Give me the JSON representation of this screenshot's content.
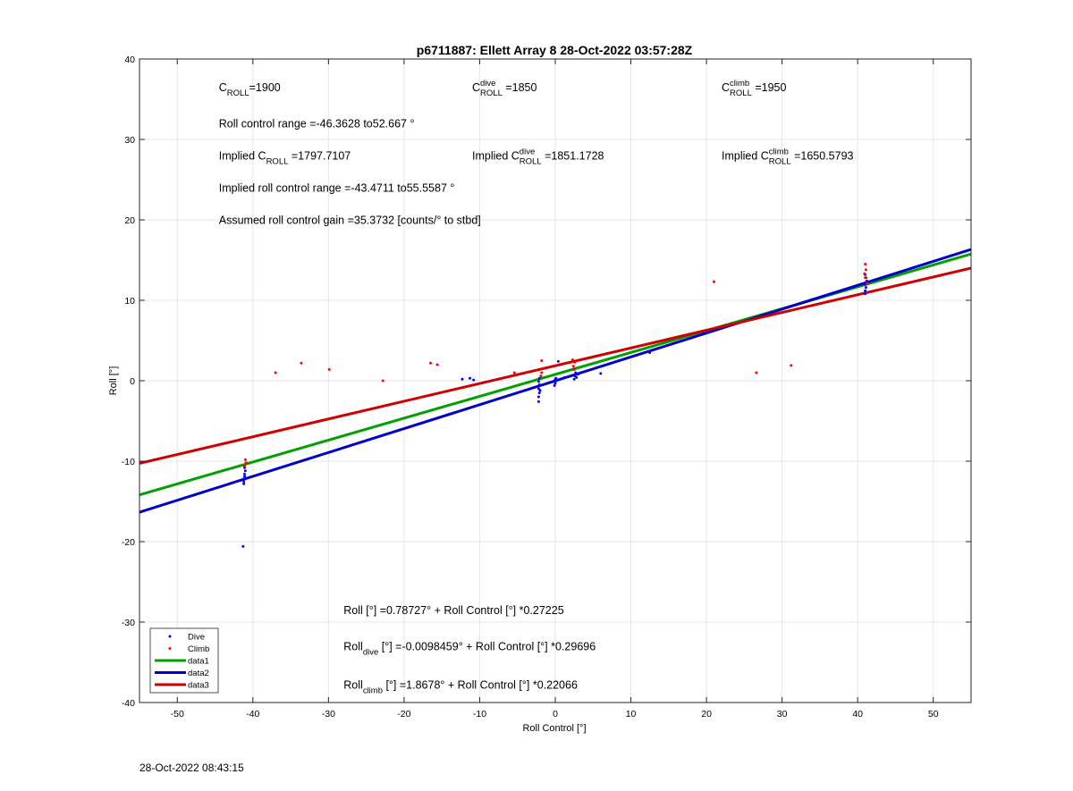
{
  "chart_data": {
    "type": "scatter",
    "title": "p6711887: Ellett Array 8 28-Oct-2022 03:57:28Z",
    "xlabel": "Roll Control [°]",
    "ylabel": "Roll [°]",
    "xlim": [
      -55,
      55
    ],
    "ylim": [
      -40,
      40
    ],
    "xticks": [
      -50,
      -40,
      -30,
      -20,
      -10,
      0,
      10,
      20,
      30,
      40,
      50
    ],
    "yticks": [
      -40,
      -30,
      -20,
      -10,
      0,
      10,
      20,
      30,
      40
    ],
    "grid": true,
    "legend_position": "bottom-left",
    "series": [
      {
        "name": "Dive",
        "kind": "points",
        "color": "#0000ff",
        "points": [
          [
            -41.3,
            -20.6
          ],
          [
            -41.2,
            -12.5
          ],
          [
            -41.2,
            -12.2
          ],
          [
            -41.1,
            -11.9
          ],
          [
            -41.1,
            -11.6
          ],
          [
            -41.0,
            -11.2
          ],
          [
            -41.1,
            -10.8
          ],
          [
            -41.2,
            -12.8
          ],
          [
            -12.3,
            0.2
          ],
          [
            -11.3,
            0.3
          ],
          [
            -10.8,
            0.1
          ],
          [
            -2.2,
            -2.6
          ],
          [
            -2.2,
            -2.0
          ],
          [
            -2.1,
            -1.5
          ],
          [
            -2.2,
            -1.0
          ],
          [
            -2.1,
            -0.5
          ],
          [
            -2.2,
            -0.1
          ],
          [
            -2.1,
            0.3
          ],
          [
            -2.0,
            -1.2
          ],
          [
            -0.1,
            -0.6
          ],
          [
            0.0,
            -0.3
          ],
          [
            -0.1,
            0.0
          ],
          [
            0.1,
            0.3
          ],
          [
            0.0,
            -0.1
          ],
          [
            0.0,
            0.2
          ],
          [
            0.4,
            2.4
          ],
          [
            1.2,
            0.4
          ],
          [
            2.5,
            0.2
          ],
          [
            2.6,
            0.6
          ],
          [
            2.7,
            1.0
          ],
          [
            2.5,
            1.4
          ],
          [
            2.8,
            0.4
          ],
          [
            3.0,
            0.8
          ],
          [
            6.0,
            0.9
          ],
          [
            12.5,
            3.5
          ],
          [
            41.0,
            10.8
          ],
          [
            41.0,
            11.2
          ],
          [
            41.1,
            11.6
          ],
          [
            41.0,
            12.0
          ],
          [
            41.2,
            12.4
          ],
          [
            41.1,
            12.8
          ],
          [
            41.0,
            13.2
          ]
        ]
      },
      {
        "name": "Climb",
        "kind": "points",
        "color": "#ff0000",
        "points": [
          [
            -41.1,
            -10.6
          ],
          [
            -40.9,
            -10.2
          ],
          [
            -41.0,
            -9.8
          ],
          [
            -37.0,
            1.0
          ],
          [
            -33.6,
            2.2
          ],
          [
            -29.9,
            1.4
          ],
          [
            -22.8,
            0.0
          ],
          [
            -16.5,
            2.2
          ],
          [
            -15.6,
            2.0
          ],
          [
            -5.4,
            1.0
          ],
          [
            -1.8,
            2.5
          ],
          [
            -1.8,
            1.0
          ],
          [
            -1.7,
            1.5
          ],
          [
            -1.9,
            0.6
          ],
          [
            2.4,
            1.8
          ],
          [
            2.6,
            2.3
          ],
          [
            2.3,
            2.6
          ],
          [
            2.5,
            1.4
          ],
          [
            21.0,
            12.3
          ],
          [
            26.6,
            1.0
          ],
          [
            31.2,
            1.9
          ],
          [
            41.0,
            14.5
          ],
          [
            41.1,
            13.8
          ],
          [
            40.9,
            13.3
          ],
          [
            41.0,
            12.8
          ],
          [
            41.2,
            12.1
          ]
        ]
      },
      {
        "name": "data1",
        "kind": "line",
        "color": "#00a000",
        "intercept": 0.78727,
        "slope": 0.27225
      },
      {
        "name": "data2",
        "kind": "line",
        "color": "#0000c8",
        "intercept": -0.0098459,
        "slope": 0.29696
      },
      {
        "name": "data3",
        "kind": "line",
        "color": "#d00000",
        "intercept": 1.8678,
        "slope": 0.22066
      }
    ],
    "annotations": [
      {
        "main": "C",
        "sub": "ROLL",
        "sup": "",
        "rest": "=1900",
        "ax": -44.5,
        "ay": 36.0
      },
      {
        "main": "C",
        "sub": "ROLL",
        "sup": "dive",
        "rest": " =1850",
        "ax": -11.0,
        "ay": 36.0
      },
      {
        "main": "C",
        "sub": "ROLL",
        "sup": "climb",
        "rest": " =1950",
        "ax": 22.0,
        "ay": 36.0
      },
      {
        "main": "Roll control range =-46.3628 to52.667 °",
        "sub": "",
        "sup": "",
        "rest": "",
        "ax": -44.5,
        "ay": 31.5
      },
      {
        "main": "Implied C",
        "sub": "ROLL",
        "sup": "",
        "rest": " =1797.7107",
        "ax": -44.5,
        "ay": 27.5
      },
      {
        "main": "Implied C",
        "sub": "ROLL",
        "sup": "dive",
        "rest": " =1851.1728",
        "ax": -11.0,
        "ay": 27.5
      },
      {
        "main": "Implied C",
        "sub": "ROLL",
        "sup": "climb",
        "rest": " =1650.5793",
        "ax": 22.0,
        "ay": 27.5
      },
      {
        "main": "Implied roll control range =-43.4711 to55.5587 °",
        "sub": "",
        "sup": "",
        "rest": "",
        "ax": -44.5,
        "ay": 23.5
      },
      {
        "main": "Assumed roll control gain =35.3732 [counts/° to stbd]",
        "sub": "",
        "sup": "",
        "rest": "",
        "ax": -44.5,
        "ay": 19.5
      },
      {
        "main": "Roll [°] =0.78727° + Roll Control [°] *0.27225",
        "sub": "",
        "sup": "",
        "rest": "",
        "ax": -28.0,
        "ay": -29.0
      },
      {
        "main": "Roll",
        "sub": "dive",
        "sup": "",
        "rest": " [°] =-0.0098459° + Roll Control [°] *0.29696",
        "ax": -28.0,
        "ay": -33.5
      },
      {
        "main": "Roll",
        "sub": "climb",
        "sup": "",
        "rest": " [°] =1.8678° + Roll Control [°] *0.22066",
        "ax": -28.0,
        "ay": -38.3
      }
    ]
  },
  "footer": {
    "timestamp": "28-Oct-2022 08:43:15"
  }
}
